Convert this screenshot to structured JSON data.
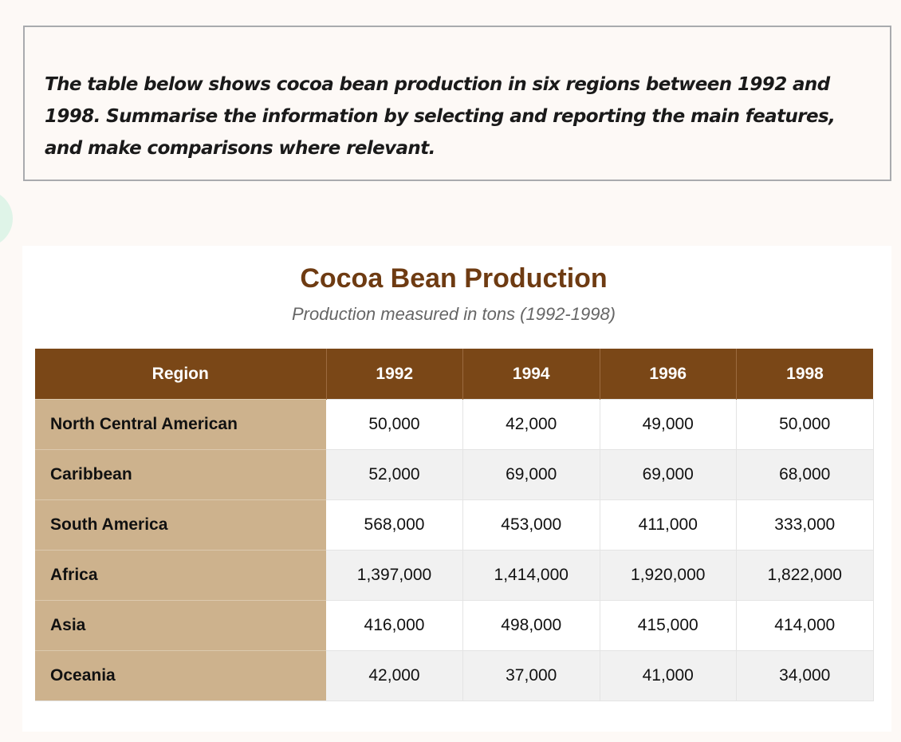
{
  "prompt": {
    "text": "The table below shows cocoa bean production in six regions between 1992 and 1998. Summarise the information by selecting and reporting the main features, and make comparisons where relevant."
  },
  "chart_data": {
    "type": "table",
    "title": "Cocoa Bean Production",
    "subtitle": "Production measured in tons (1992-1998)",
    "columns": [
      "Region",
      "1992",
      "1994",
      "1996",
      "1998"
    ],
    "rows": [
      {
        "region": "North Central American",
        "values": [
          "50,000",
          "42,000",
          "49,000",
          "50,000"
        ]
      },
      {
        "region": "Caribbean",
        "values": [
          "52,000",
          "69,000",
          "69,000",
          "68,000"
        ]
      },
      {
        "region": "South America",
        "values": [
          "568,000",
          "453,000",
          "411,000",
          "333,000"
        ]
      },
      {
        "region": "Africa",
        "values": [
          "1,397,000",
          "1,414,000",
          "1,920,000",
          "1,822,000"
        ]
      },
      {
        "region": "Asia",
        "values": [
          "416,000",
          "498,000",
          "415,000",
          "414,000"
        ]
      },
      {
        "region": "Oceania",
        "values": [
          "42,000",
          "37,000",
          "41,000",
          "34,000"
        ]
      }
    ]
  },
  "colors": {
    "header_bg": "#7a4717",
    "region_bg": "#cdb28d",
    "title": "#6e3b12",
    "page_bg": "#fdf9f6"
  }
}
